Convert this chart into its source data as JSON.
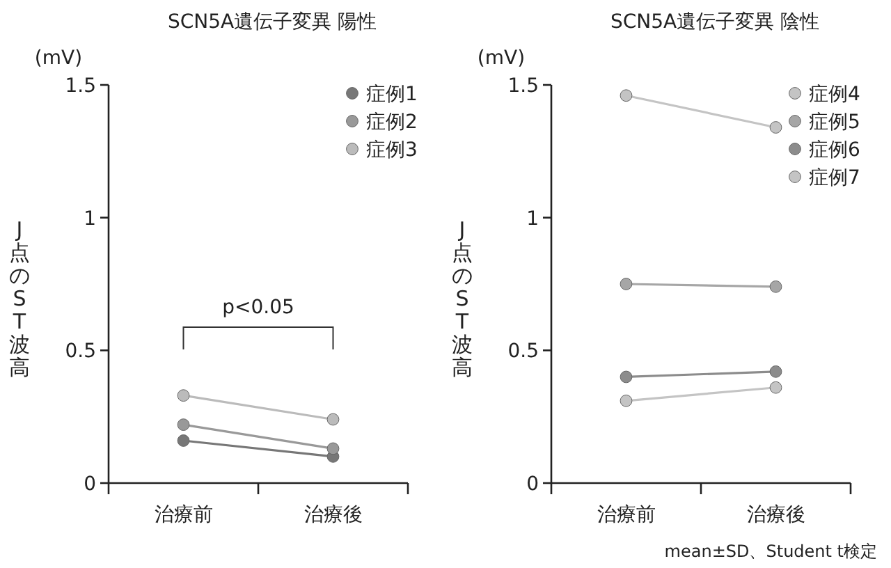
{
  "chart_data": [
    {
      "type": "line",
      "title": "SCN5A遺伝子変異 陽性",
      "ylabel": "J点のST波高",
      "annotations": [
        "(mV)",
        "p<0.05"
      ],
      "categories": [
        "治療前",
        "治療後"
      ],
      "ylim": [
        0,
        1.5
      ],
      "yticks": [
        0,
        0.5,
        1,
        1.5
      ],
      "legend": "top right",
      "marker": "circle",
      "series": [
        {
          "name": "症例1",
          "color": "#777777",
          "values": [
            0.16,
            0.1
          ]
        },
        {
          "name": "症例2",
          "color": "#999999",
          "values": [
            0.22,
            0.13
          ]
        },
        {
          "name": "症例3",
          "color": "#bbbbbb",
          "values": [
            0.33,
            0.24
          ]
        }
      ]
    },
    {
      "type": "line",
      "title": "SCN5A遺伝子変異 陰性",
      "ylabel": "J点のST波高",
      "annotations": [
        "(mV)",
        "mean±SD、Student t検定"
      ],
      "categories": [
        "治療前",
        "治療後"
      ],
      "ylim": [
        0,
        1.5
      ],
      "yticks": [
        0,
        0.5,
        1,
        1.5
      ],
      "legend": "top right",
      "marker": "circle",
      "series": [
        {
          "name": "症例4",
          "color": "#c4c4c4",
          "values": [
            1.46,
            1.34
          ]
        },
        {
          "name": "症例5",
          "color": "#a6a6a6",
          "values": [
            0.75,
            0.74
          ]
        },
        {
          "name": "症例6",
          "color": "#8c8c8c",
          "values": [
            0.4,
            0.42
          ]
        },
        {
          "name": "症例7",
          "color": "#c4c4c4",
          "values": [
            0.31,
            0.36
          ]
        }
      ]
    }
  ]
}
